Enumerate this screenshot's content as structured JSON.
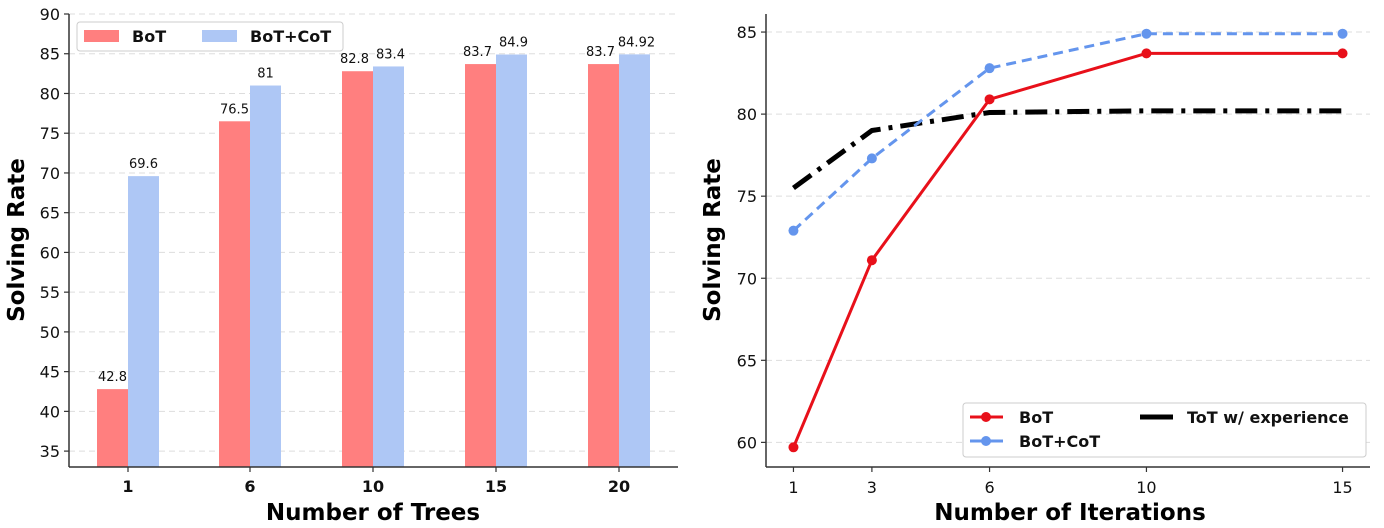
{
  "chart_data": [
    {
      "type": "bar",
      "title": "",
      "xlabel": "Number of Trees",
      "ylabel": "Solving Rate",
      "ylim": [
        33,
        90
      ],
      "yticks": [
        35,
        40,
        45,
        50,
        55,
        60,
        65,
        70,
        75,
        80,
        85,
        90
      ],
      "grid": true,
      "legend_position": "top-left",
      "categories": [
        "1",
        "6",
        "10",
        "15",
        "20"
      ],
      "series": [
        {
          "name": "BoT",
          "color": "#ff7f7f",
          "values": [
            42.8,
            76.5,
            82.8,
            83.7,
            83.7
          ],
          "labels": [
            "42.8",
            "76.5",
            "82.8",
            "83.7",
            "83.7"
          ]
        },
        {
          "name": "BoT+CoT",
          "color": "#aec7f5",
          "values": [
            69.6,
            81,
            83.4,
            84.9,
            84.92
          ],
          "labels": [
            "69.6",
            "81",
            "83.4",
            "84.9",
            "84.92"
          ]
        }
      ]
    },
    {
      "type": "line",
      "title": "",
      "xlabel": "Number of Iterations",
      "ylabel": "Solving Rate",
      "ylim": [
        58.5,
        86.1
      ],
      "xlim": [
        0.3,
        15.7
      ],
      "yticks": [
        60,
        65,
        70,
        75,
        80,
        85
      ],
      "xticks": [
        1,
        3,
        6,
        10,
        15
      ],
      "grid": true,
      "legend_position": "bottom-right",
      "x": [
        1,
        3,
        6,
        10,
        15
      ],
      "series": [
        {
          "name": "BoT",
          "color": "#e8101a",
          "style": "solid",
          "marker": "circle",
          "values": [
            59.7,
            71.1,
            80.9,
            83.7,
            83.7
          ]
        },
        {
          "name": "BoT+CoT",
          "color": "#6495ed",
          "style": "dashed",
          "marker": "circle",
          "values": [
            72.9,
            77.3,
            82.8,
            84.9,
            84.9
          ]
        },
        {
          "name": "ToT w/ experience",
          "color": "#000000",
          "style": "dashdot",
          "marker": "none",
          "values": [
            75.5,
            79.0,
            80.1,
            80.2,
            80.2
          ]
        }
      ]
    }
  ]
}
